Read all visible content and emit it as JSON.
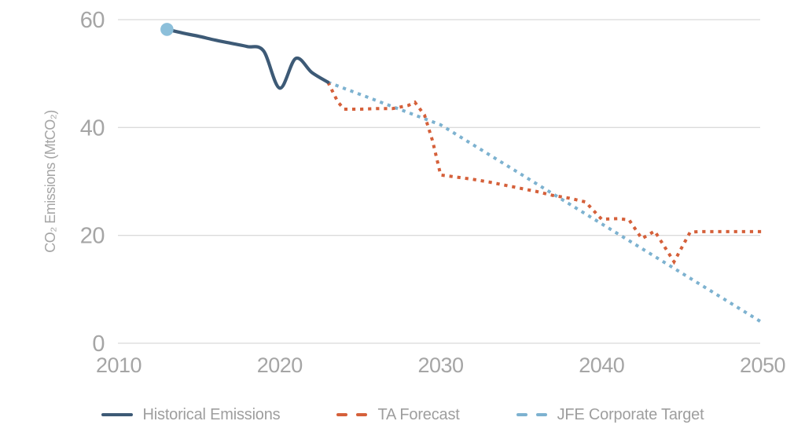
{
  "chart_data": {
    "type": "line",
    "title": "",
    "xlabel": "",
    "ylabel": "CO₂ Emissions (MtCO₂)",
    "axes": {
      "yticks": [
        0,
        20,
        40,
        60
      ],
      "xticks": [
        2010,
        2020,
        2030,
        2040,
        2050
      ],
      "ylim": [
        0,
        60
      ],
      "xlim": [
        2010,
        2050
      ],
      "grid": "horizontal-only"
    },
    "colors": {
      "grid": "#dbdbdb",
      "tick_label": "#a5a5a5",
      "axis_title": "#a5a5a5",
      "legend_text": "#9e9e9e",
      "background": "#ffffff"
    },
    "legend_position": "bottom-center",
    "series": [
      {
        "name": "Historical Emissions",
        "color": "#3d5a76",
        "style": "solid",
        "width": 4.2,
        "smooth": true,
        "points": [
          [
            2013,
            58.2
          ],
          [
            2014,
            57.5
          ],
          [
            2015,
            56.9
          ],
          [
            2016,
            56.2
          ],
          [
            2017,
            55.6
          ],
          [
            2018,
            55.0
          ],
          [
            2019,
            54.2
          ],
          [
            2020,
            47.3
          ],
          [
            2021,
            52.8
          ],
          [
            2022,
            50.2
          ],
          [
            2023,
            48.4
          ]
        ],
        "start_marker": {
          "year": 2013,
          "value": 58.2,
          "radius": 8.3,
          "color": "#8cbfda"
        }
      },
      {
        "name": "TA Forecast",
        "color": "#d5603a",
        "style": "dashed",
        "width": 4,
        "smooth": false,
        "points": [
          [
            2023,
            48.4
          ],
          [
            2023.6,
            44.8
          ],
          [
            2024,
            43.4
          ],
          [
            2025,
            43.4
          ],
          [
            2026,
            43.5
          ],
          [
            2027,
            43.5
          ],
          [
            2028,
            44.1
          ],
          [
            2028.4,
            44.7
          ],
          [
            2029,
            42.3
          ],
          [
            2029.5,
            37.5
          ],
          [
            2030,
            31.2
          ],
          [
            2031,
            30.8
          ],
          [
            2032,
            30.4
          ],
          [
            2033,
            29.9
          ],
          [
            2034,
            29.3
          ],
          [
            2035,
            28.7
          ],
          [
            2036,
            28.1
          ],
          [
            2037,
            27.4
          ],
          [
            2038,
            26.9
          ],
          [
            2039,
            26.2
          ],
          [
            2040,
            23.0
          ],
          [
            2041,
            23.1
          ],
          [
            2041.7,
            22.9
          ],
          [
            2042.5,
            19.4
          ],
          [
            2043.3,
            20.8
          ],
          [
            2044.5,
            15.1
          ],
          [
            2045.5,
            20.6
          ],
          [
            2046,
            20.7
          ],
          [
            2050,
            20.7
          ]
        ]
      },
      {
        "name": "JFE Corporate Target",
        "color": "#7db2d0",
        "style": "dashed",
        "width": 4,
        "smooth": false,
        "points": [
          [
            2023,
            48.4
          ],
          [
            2030,
            40.5
          ],
          [
            2050,
            3.8
          ]
        ]
      }
    ]
  }
}
